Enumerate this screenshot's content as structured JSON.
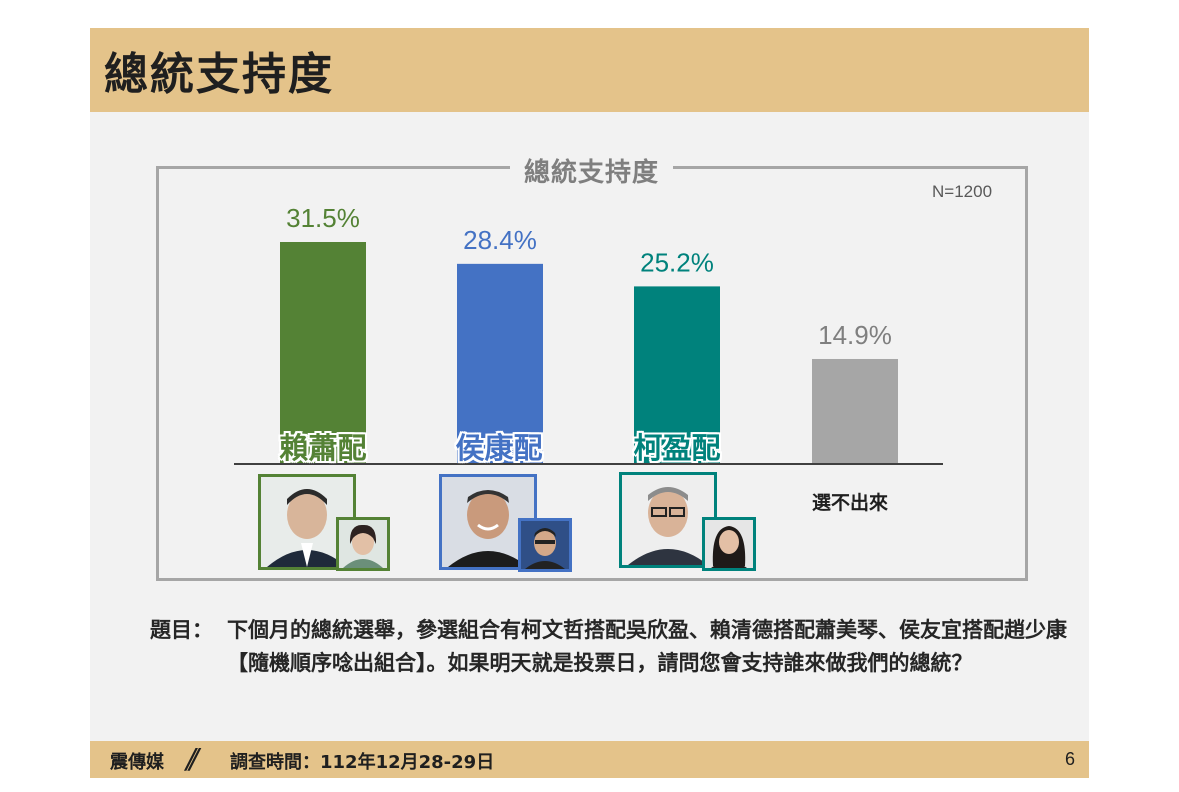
{
  "header": {
    "title": "總統支持度"
  },
  "chart_data": {
    "type": "bar",
    "title": "總統支持度",
    "sample_size": "N=1200",
    "categories": [
      "賴蕭配",
      "侯康配",
      "柯盈配",
      "選不出來"
    ],
    "values": [
      31.5,
      28.4,
      25.2,
      14.9
    ],
    "value_labels": [
      "31.5%",
      "28.4%",
      "25.2%",
      "14.9%"
    ],
    "colors": [
      "#548235",
      "#4472c4",
      "#00827c",
      "#a6a6a6"
    ],
    "ylim": [
      0,
      35
    ],
    "grid": false
  },
  "question": {
    "label": "題目：",
    "text": "下個月的總統選舉，參選組合有柯文哲搭配吳欣盈、賴清德搭配蕭美琴、侯友宜搭配趙少康【隨機順序唸出組合】。如果明天就是投票日，請問您會支持誰來做我們的總統？"
  },
  "footer": {
    "source": "震傳媒",
    "separator": "//",
    "survey_date": "調查時間：112年12月28-29日",
    "page_number": "6"
  }
}
